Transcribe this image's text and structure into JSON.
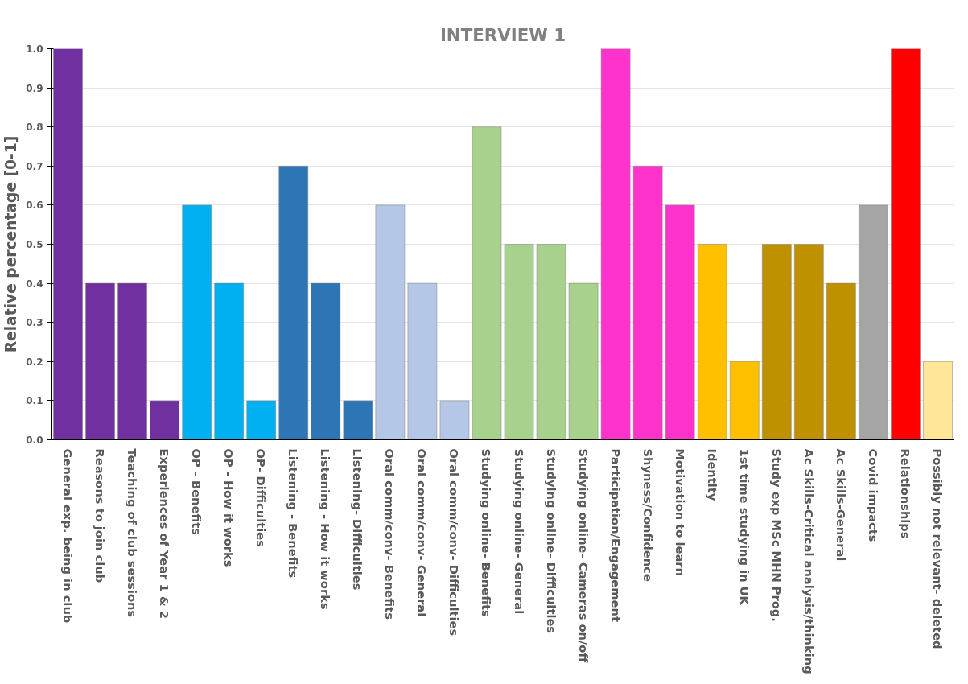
{
  "chart_data": {
    "type": "bar",
    "title": "INTERVIEW 1",
    "ylabel": "Relative percentage [0-1]",
    "categories": [
      "General exp. being in club",
      "Reasons to join club",
      "Teaching of club sessions",
      "Experiences of Year 1 & 2",
      "OP - Benefits",
      "OP - How it works",
      "OP- Difficulties",
      "Listening - Benefits",
      "Listening - How it works",
      "Listening- Difficulties",
      "Oral comm/conv- Benefits",
      "Oral comm/conv- General",
      "Oral comm/conv- Difficulties",
      "Studying online- Benefits",
      "Studying online- General",
      "Studying online- Difficulties",
      "Studying online- Cameras on/off",
      "Participation/Engagement",
      "Shyness/Confidence",
      "Motivation to learn",
      "Identity",
      "1st time studying in UK",
      "Study exp MSc MHN Prog.",
      "Ac Skills-Critical analysis/thinking",
      "Ac Skills-General",
      "Covid impacts",
      "Relationships",
      "Possibly not relevant- deleted"
    ],
    "values": [
      1.0,
      0.4,
      0.4,
      0.1,
      0.6,
      0.4,
      0.1,
      0.7,
      0.4,
      0.1,
      0.6,
      0.4,
      0.1,
      0.8,
      0.5,
      0.5,
      0.4,
      1.0,
      0.7,
      0.6,
      0.5,
      0.2,
      0.5,
      0.5,
      0.4,
      0.6,
      1.0,
      0.2
    ],
    "colors": [
      "#7030a0",
      "#7030a0",
      "#7030a0",
      "#7030a0",
      "#00b0f0",
      "#00b0f0",
      "#00b0f0",
      "#2e75b6",
      "#2e75b6",
      "#2e75b6",
      "#b4c7e7",
      "#b4c7e7",
      "#b4c7e7",
      "#a9d18e",
      "#a9d18e",
      "#a9d18e",
      "#a9d18e",
      "#ff33cc",
      "#ff33cc",
      "#ff33cc",
      "#ffc000",
      "#ffc000",
      "#bf9000",
      "#bf9000",
      "#bf9000",
      "#a5a5a5",
      "#ff0000",
      "#ffe699"
    ],
    "ylim": [
      0,
      1
    ],
    "yticks": [
      {
        "value": 0,
        "label": "0.0"
      },
      {
        "value": 0.1,
        "label": "0.1"
      },
      {
        "value": 0.2,
        "label": "0.2"
      },
      {
        "value": 0.3,
        "label": "0.3"
      },
      {
        "value": 0.4,
        "label": "0.4"
      },
      {
        "value": 0.5,
        "label": "0.5"
      },
      {
        "value": 0.6,
        "label": "0.6"
      },
      {
        "value": 0.7,
        "label": "0.7"
      },
      {
        "value": 0.8,
        "label": "0.8"
      },
      {
        "value": 0.9,
        "label": "0.9"
      },
      {
        "value": 1,
        "label": "1.0"
      }
    ],
    "grid": "y"
  }
}
